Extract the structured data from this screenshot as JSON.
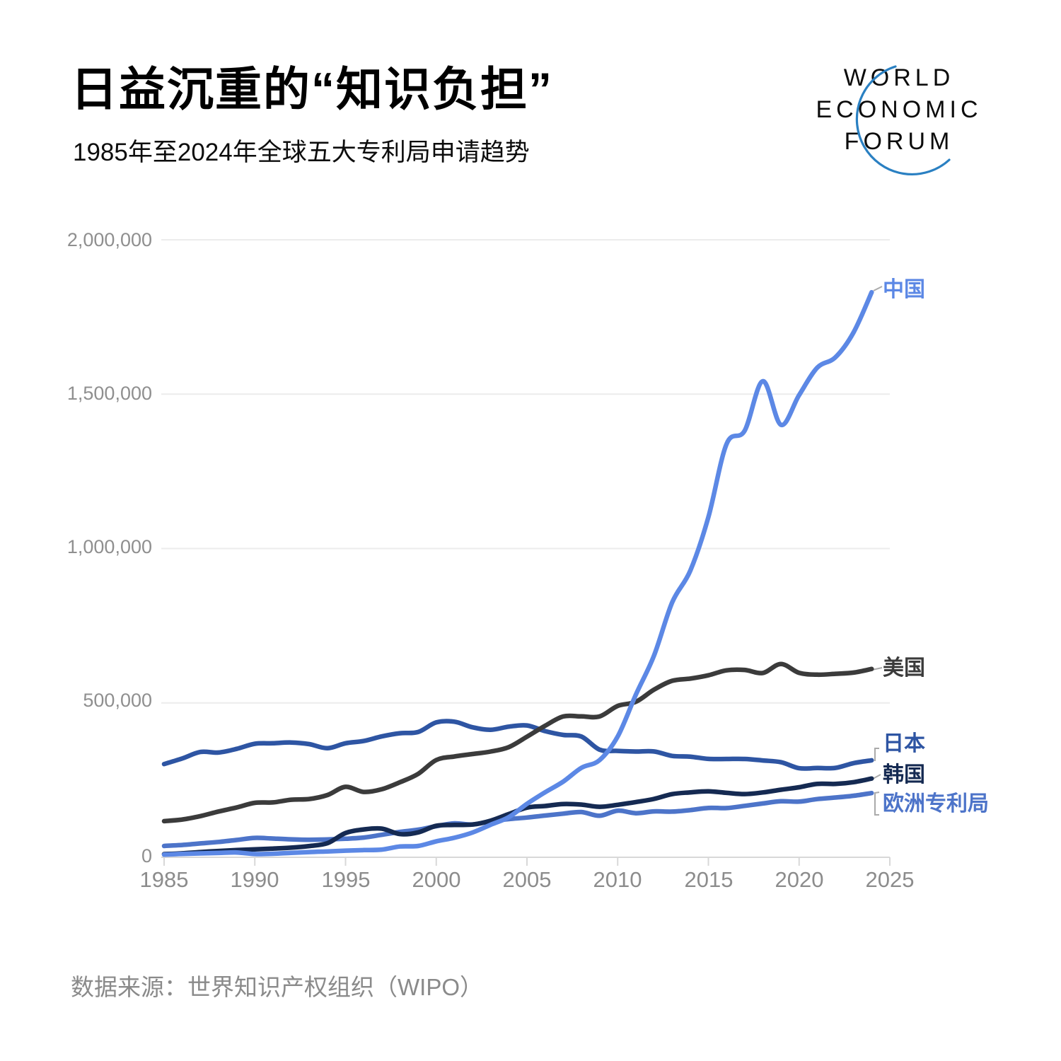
{
  "header": {
    "title": "日益沉重的“知识负担”",
    "subtitle": "1985年至2024年全球五大专利局申请趋势"
  },
  "logo": {
    "line1": "WORLD",
    "line2": "ECONOMIC",
    "line3": "FORUM",
    "arc_color": "#2a80c2"
  },
  "source": "数据来源：世界知识产权组织（WIPO）",
  "chart_data": {
    "type": "line",
    "title": "1985年至2024年全球五大专利局申请趋势",
    "x": [
      1985,
      1986,
      1987,
      1988,
      1989,
      1990,
      1991,
      1992,
      1993,
      1994,
      1995,
      1996,
      1997,
      1998,
      1999,
      2000,
      2001,
      2002,
      2003,
      2004,
      2005,
      2006,
      2007,
      2008,
      2009,
      2010,
      2011,
      2012,
      2013,
      2014,
      2015,
      2016,
      2017,
      2018,
      2019,
      2020,
      2021,
      2022,
      2023,
      2024
    ],
    "series": [
      {
        "name": "中国",
        "color": "#5c88e5",
        "values": [
          8500,
          11000,
          12500,
          14000,
          15500,
          10500,
          11500,
          14400,
          17000,
          19000,
          21600,
          23300,
          25000,
          35000,
          36700,
          51700,
          63200,
          80200,
          105300,
          130100,
          173300,
          210500,
          245200,
          289800,
          314600,
          391200,
          526400,
          652800,
          825100,
          928200,
          1101900,
          1338500,
          1381600,
          1542000,
          1400700,
          1497200,
          1585700,
          1619300,
          1700000,
          1830000
        ]
      },
      {
        "name": "美国",
        "color": "#3b3b3b",
        "values": [
          117000,
          122400,
          133400,
          148200,
          161300,
          176300,
          177800,
          186500,
          188700,
          201500,
          228200,
          211600,
          220300,
          243100,
          270200,
          315000,
          326500,
          334400,
          342400,
          356900,
          390700,
          425900,
          456200,
          456300,
          456100,
          490200,
          503600,
          542800,
          571600,
          578800,
          589400,
          605600,
          606900,
          597100,
          626200,
          597200,
          591500,
          594300,
          598100,
          610000
        ]
      },
      {
        "name": "日本",
        "color": "#2e55a3",
        "values": [
          302000,
          320100,
          341100,
          339400,
          351200,
          367600,
          369400,
          371900,
          366500,
          353300,
          369200,
          376600,
          391600,
          401900,
          405700,
          436900,
          439200,
          421000,
          413000,
          423100,
          427100,
          408700,
          396300,
          391000,
          348600,
          344600,
          342600,
          342800,
          328400,
          325900,
          318700,
          318400,
          318500,
          313600,
          307900,
          288500,
          289200,
          289500,
          305000,
          314000
        ]
      },
      {
        "name": "韩国",
        "color": "#152a52",
        "values": [
          10200,
          12800,
          17000,
          20500,
          23300,
          25800,
          28100,
          31100,
          36500,
          45700,
          78500,
          90300,
          92700,
          75200,
          80600,
          102000,
          104600,
          106100,
          118700,
          140100,
          160900,
          166200,
          172500,
          170600,
          163500,
          170100,
          178900,
          188900,
          204600,
          210300,
          213700,
          208800,
          204800,
          210000,
          218900,
          226800,
          237900,
          237600,
          243300,
          255000
        ]
      },
      {
        "name": "欧洲专利局",
        "color": "#4d74c9",
        "values": [
          36700,
          39900,
          44800,
          49700,
          56100,
          62800,
          60600,
          58100,
          56800,
          57800,
          60100,
          63900,
          72900,
          82300,
          89400,
          100700,
          110000,
          106300,
          116600,
          123700,
          128700,
          135200,
          141300,
          146600,
          134500,
          151000,
          142800,
          148600,
          148000,
          152700,
          160000,
          159400,
          166600,
          174400,
          181400,
          180300,
          188600,
          193500,
          199300,
          208000
        ]
      }
    ],
    "ylim": [
      0,
      2000000
    ],
    "y_ticks": [
      0,
      500000,
      1000000,
      1500000,
      2000000
    ],
    "y_tick_labels": [
      "0",
      "500,000",
      "1,000,000",
      "1,500,000",
      "2,000,000"
    ],
    "x_ticks": [
      1985,
      1990,
      1995,
      2000,
      2005,
      2010,
      2015,
      2020,
      2025
    ],
    "x_tick_labels": [
      "1985",
      "1990",
      "1995",
      "2000",
      "2005",
      "2010",
      "2015",
      "2020",
      "2025"
    ],
    "grid": "horizontal",
    "legend_position": "right-of-lines",
    "colors": {
      "grid": "#ececec",
      "axis": "#d8d8d8",
      "tick_label": "#8c8c8c",
      "leader": "#aaaaaa"
    }
  }
}
